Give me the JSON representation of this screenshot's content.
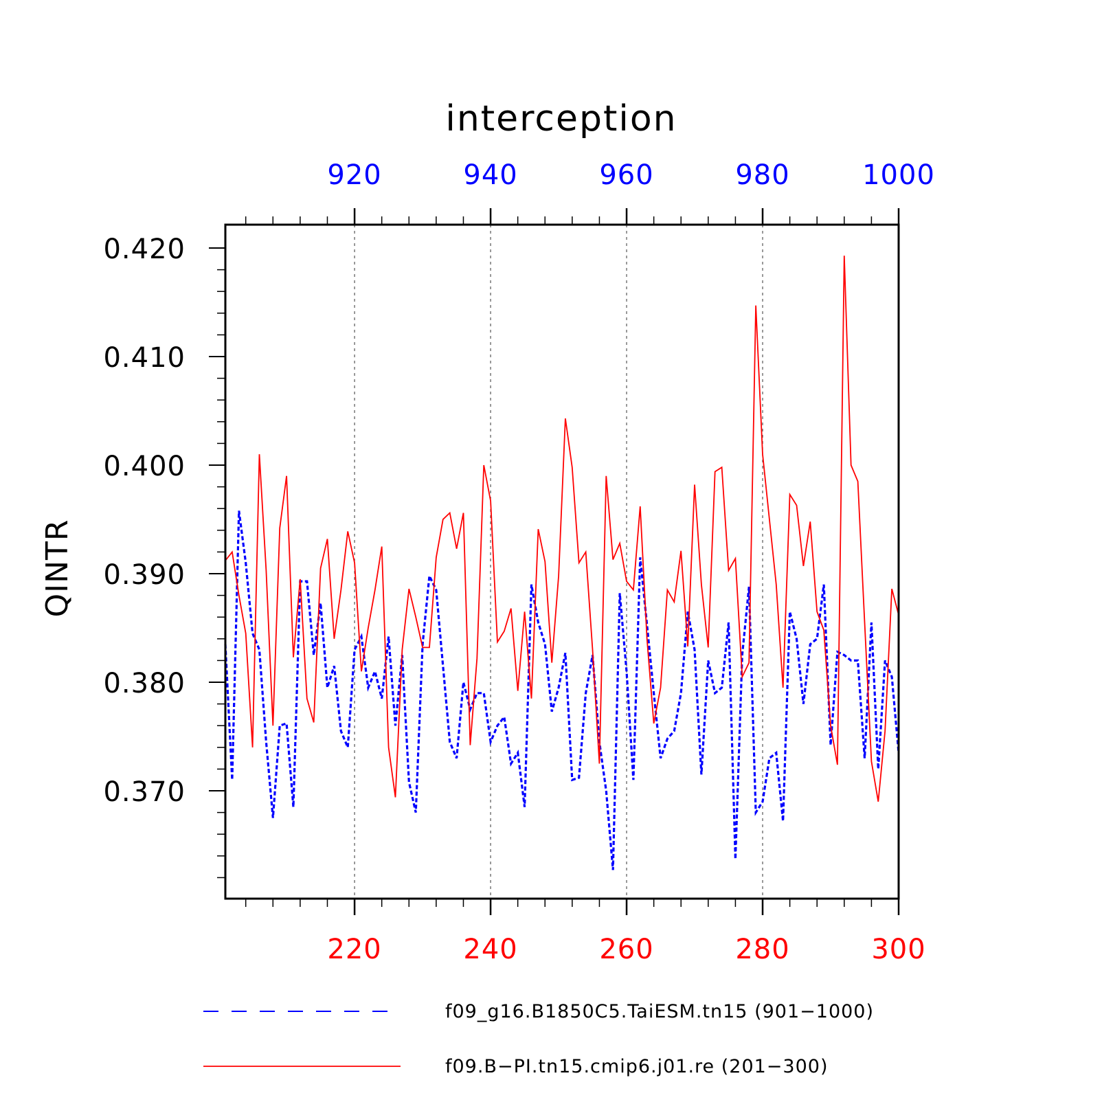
{
  "chart_data": {
    "type": "line",
    "title": "interception",
    "ylabel": "QINTR",
    "ylim": [
      0.3605,
      0.4225
    ],
    "yticks": [
      0.37,
      0.38,
      0.39,
      0.4,
      0.41,
      0.42
    ],
    "ytick_labels": [
      "0.370",
      "0.380",
      "0.390",
      "0.400",
      "0.410",
      "0.420"
    ],
    "bottom_axis": {
      "color": "#ff0000",
      "range": [
        201,
        300
      ],
      "ticks": [
        220,
        240,
        260,
        280,
        300
      ],
      "tick_labels": [
        "220",
        "240",
        "260",
        "280",
        "300"
      ]
    },
    "top_axis": {
      "color": "#0000ff",
      "range": [
        901,
        1000
      ],
      "ticks": [
        920,
        940,
        960,
        980,
        1000
      ],
      "tick_labels": [
        "920",
        "940",
        "960",
        "980",
        "1000"
      ]
    },
    "grid": "vertical dashed at major ticks",
    "legend_placement": "bottom",
    "series": [
      {
        "name": "f09_g16.B1850C5.TaiESM.tn15 (901−1000)",
        "axis": "top",
        "color": "#0000ff",
        "style": "dashed",
        "x": [
          901,
          902,
          903,
          904,
          905,
          906,
          907,
          908,
          909,
          910,
          911,
          912,
          913,
          914,
          915,
          916,
          917,
          918,
          919,
          920,
          921,
          922,
          923,
          924,
          925,
          926,
          927,
          928,
          929,
          930,
          931,
          932,
          933,
          934,
          935,
          936,
          937,
          938,
          939,
          940,
          941,
          942,
          943,
          944,
          945,
          946,
          947,
          948,
          949,
          950,
          951,
          952,
          953,
          954,
          955,
          956,
          957,
          958,
          959,
          960,
          961,
          962,
          963,
          964,
          965,
          966,
          967,
          968,
          969,
          970,
          971,
          972,
          973,
          974,
          975,
          976,
          977,
          978,
          979,
          980,
          981,
          982,
          983,
          984,
          985,
          986,
          987,
          988,
          989,
          990,
          991,
          992,
          993,
          994,
          995,
          996,
          997,
          998,
          999,
          1000
        ],
        "values": [
          0.3835,
          0.371,
          0.3958,
          0.391,
          0.3845,
          0.383,
          0.3745,
          0.3675,
          0.376,
          0.3762,
          0.3685,
          0.3893,
          0.3893,
          0.3825,
          0.3873,
          0.3795,
          0.3815,
          0.3755,
          0.374,
          0.383,
          0.3842,
          0.3795,
          0.381,
          0.3785,
          0.3842,
          0.376,
          0.3825,
          0.3708,
          0.368,
          0.3835,
          0.3898,
          0.3885,
          0.3815,
          0.3745,
          0.373,
          0.38,
          0.3775,
          0.379,
          0.379,
          0.3745,
          0.376,
          0.3768,
          0.3725,
          0.3735,
          0.3685,
          0.389,
          0.3855,
          0.3835,
          0.3773,
          0.3795,
          0.3827,
          0.371,
          0.3712,
          0.379,
          0.3825,
          0.3745,
          0.37,
          0.3627,
          0.3882,
          0.381,
          0.371,
          0.3915,
          0.3853,
          0.379,
          0.373,
          0.3748,
          0.3755,
          0.379,
          0.3865,
          0.383,
          0.3715,
          0.382,
          0.379,
          0.3795,
          0.3855,
          0.3637,
          0.3825,
          0.3888,
          0.368,
          0.369,
          0.373,
          0.3735,
          0.3672,
          0.3865,
          0.384,
          0.378,
          0.3835,
          0.384,
          0.389,
          0.3742,
          0.3828,
          0.3825,
          0.382,
          0.382,
          0.373,
          0.3855,
          0.372,
          0.382,
          0.3805,
          0.3735
        ]
      },
      {
        "name": "f09.B−PI.tn15.cmip6.j01.re (201−300)",
        "axis": "bottom",
        "color": "#ff0000",
        "style": "solid",
        "x": [
          201,
          202,
          203,
          204,
          205,
          206,
          207,
          208,
          209,
          210,
          211,
          212,
          213,
          214,
          215,
          216,
          217,
          218,
          219,
          220,
          221,
          222,
          223,
          224,
          225,
          226,
          227,
          228,
          229,
          230,
          231,
          232,
          233,
          234,
          235,
          236,
          237,
          238,
          239,
          240,
          241,
          242,
          243,
          244,
          245,
          246,
          247,
          248,
          249,
          250,
          251,
          252,
          253,
          254,
          255,
          256,
          257,
          258,
          259,
          260,
          261,
          262,
          263,
          264,
          265,
          266,
          267,
          268,
          269,
          270,
          271,
          272,
          273,
          274,
          275,
          276,
          277,
          278,
          279,
          280,
          281,
          282,
          283,
          284,
          285,
          286,
          287,
          288,
          289,
          290,
          291,
          292,
          293,
          294,
          295,
          296,
          297,
          298,
          299,
          300
        ],
        "values": [
          0.3912,
          0.392,
          0.388,
          0.3845,
          0.374,
          0.401,
          0.3903,
          0.376,
          0.3942,
          0.399,
          0.3823,
          0.3895,
          0.3785,
          0.3763,
          0.3905,
          0.3932,
          0.384,
          0.3885,
          0.3939,
          0.391,
          0.381,
          0.385,
          0.3885,
          0.3925,
          0.374,
          0.3694,
          0.383,
          0.3886,
          0.386,
          0.3832,
          0.3832,
          0.3915,
          0.395,
          0.3956,
          0.3923,
          0.3956,
          0.3742,
          0.3822,
          0.4,
          0.3967,
          0.3837,
          0.3847,
          0.3868,
          0.3792,
          0.3865,
          0.3785,
          0.3941,
          0.3911,
          0.3818,
          0.3898,
          0.4043,
          0.3998,
          0.391,
          0.392,
          0.383,
          0.3725,
          0.399,
          0.3913,
          0.3928,
          0.3893,
          0.3885,
          0.3962,
          0.384,
          0.3762,
          0.3795,
          0.3885,
          0.3874,
          0.3921,
          0.3833,
          0.3982,
          0.389,
          0.3832,
          0.3994,
          0.3998,
          0.3903,
          0.3914,
          0.3805,
          0.3818,
          0.4147,
          0.401,
          0.395,
          0.389,
          0.3795,
          0.3973,
          0.3963,
          0.3907,
          0.3948,
          0.3865,
          0.3848,
          0.376,
          0.3724,
          0.4193,
          0.4,
          0.3985,
          0.3855,
          0.3727,
          0.369,
          0.3755,
          0.3886,
          0.3862
        ]
      }
    ]
  }
}
